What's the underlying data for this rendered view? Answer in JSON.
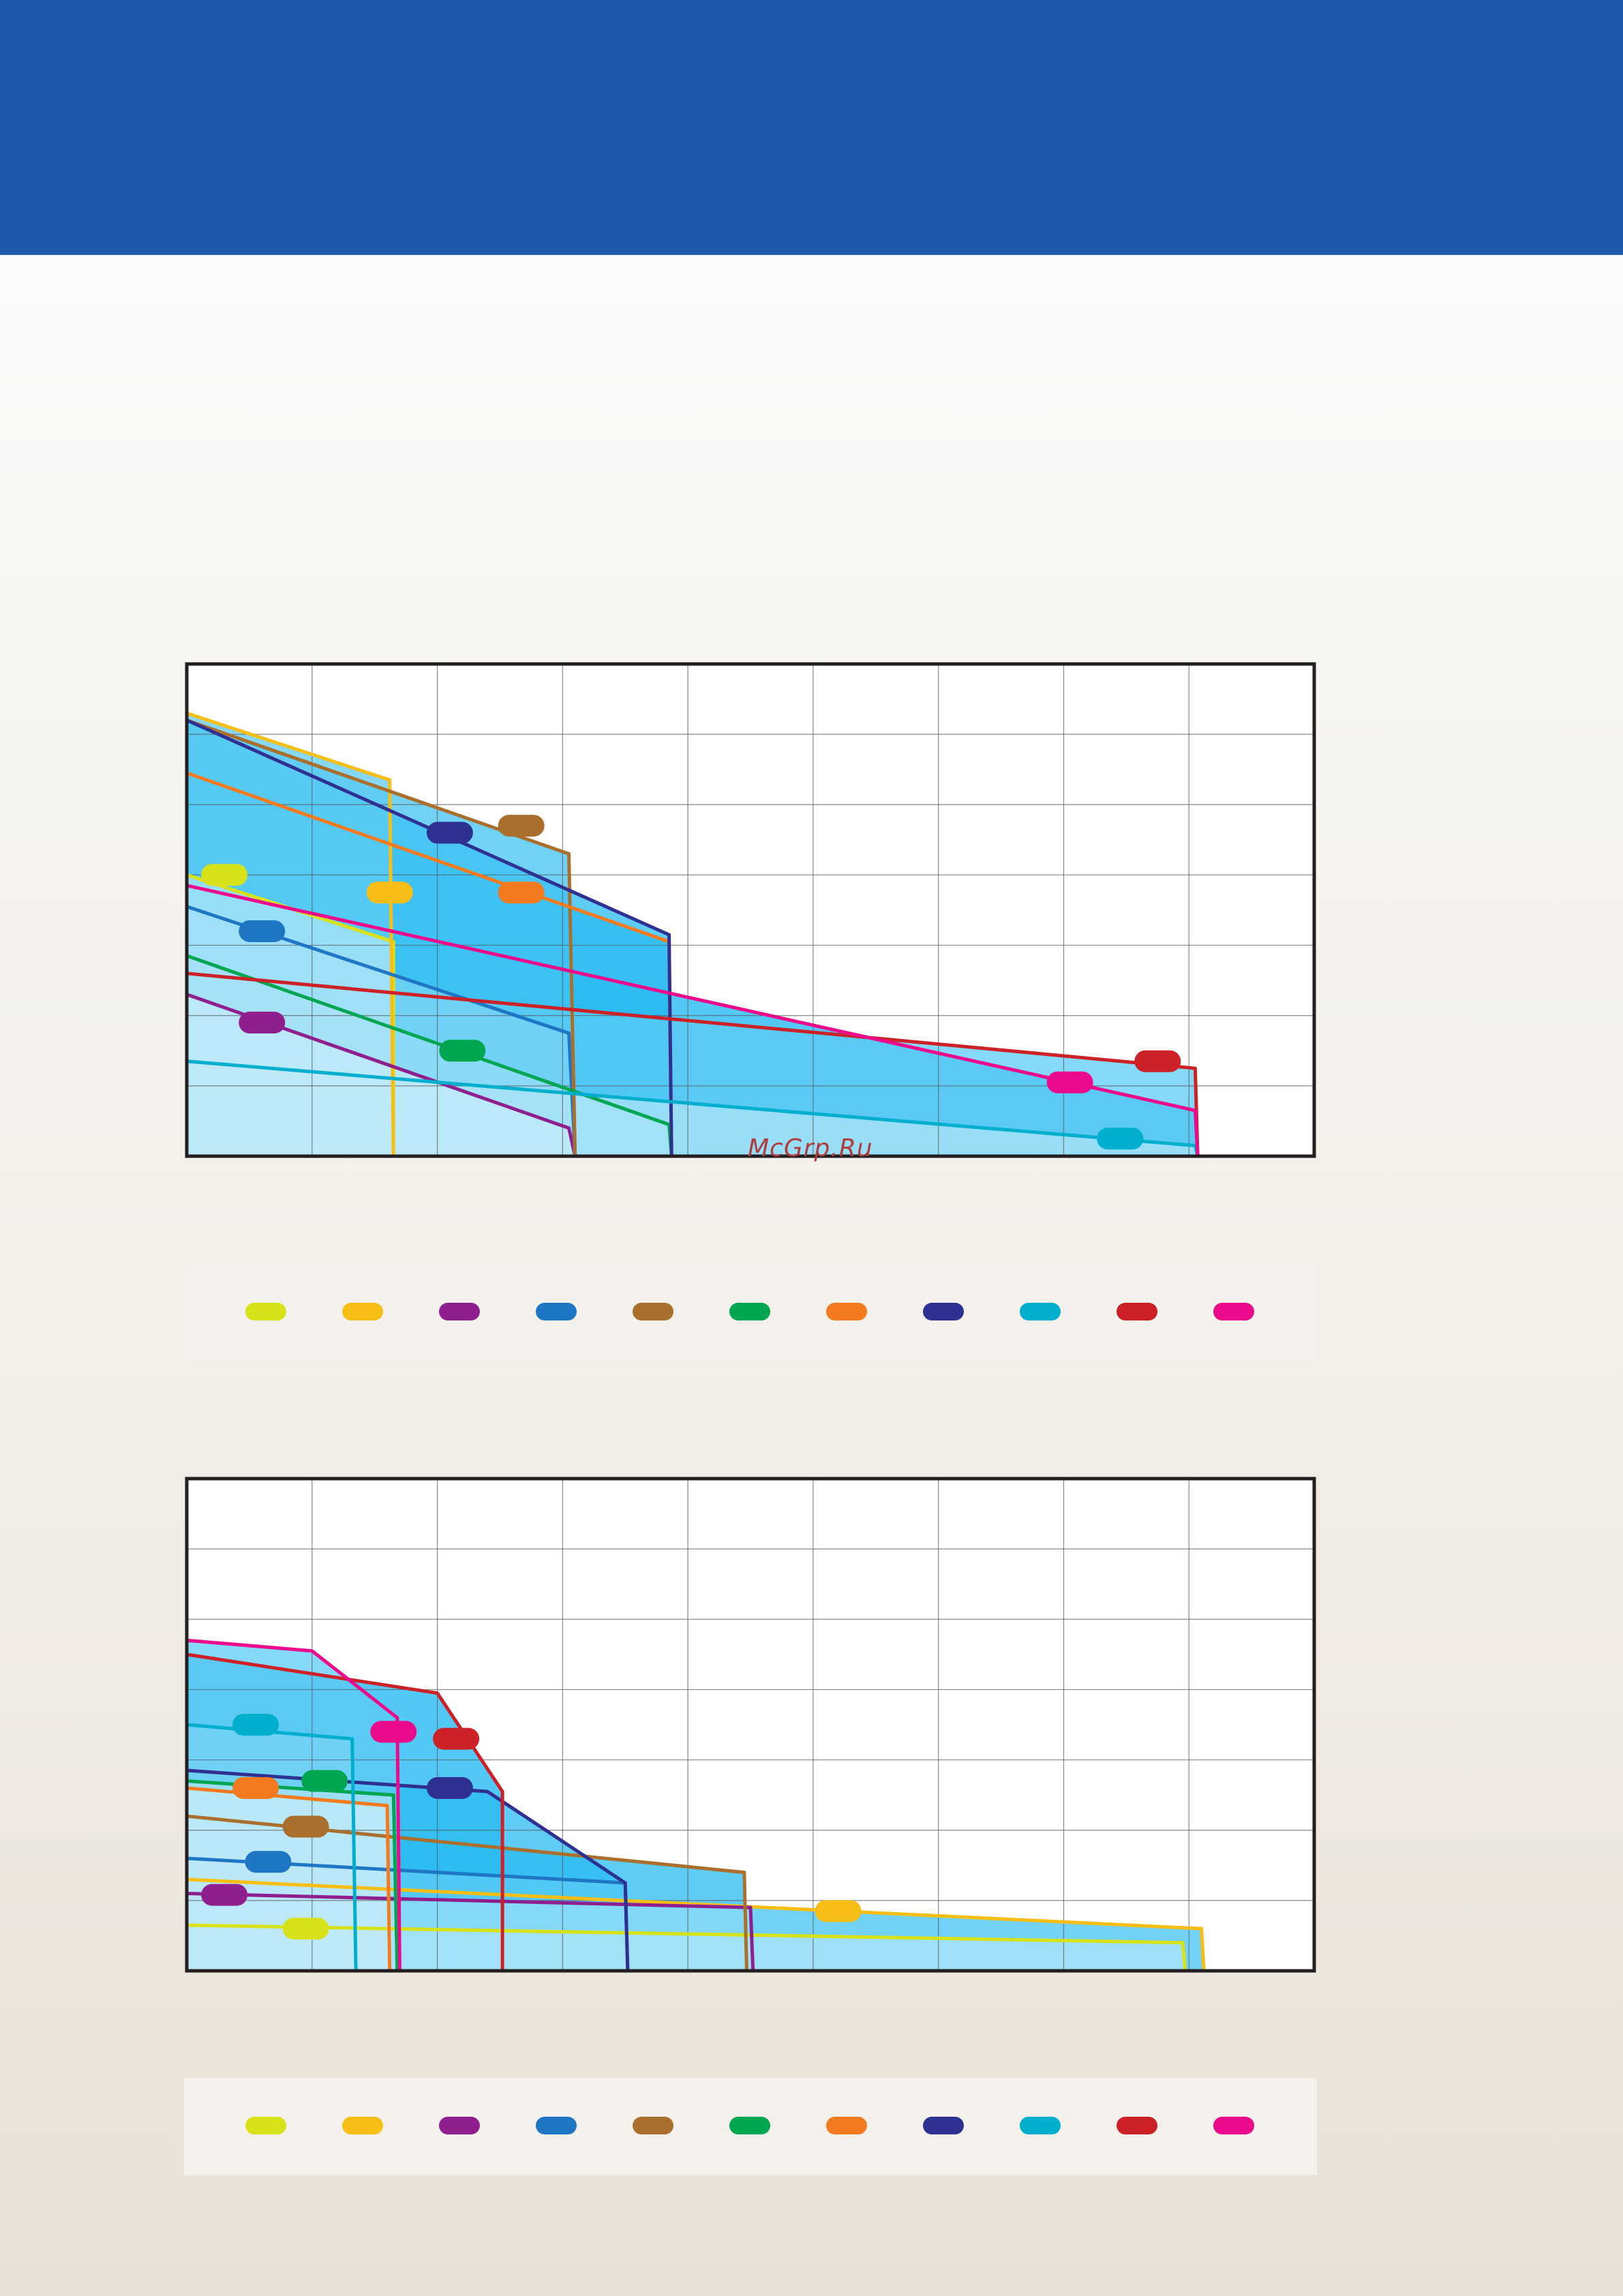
{
  "watermark": "McGrp.Ru",
  "colors": {
    "header": "#1f59ad",
    "fills": [
      "#1bb6f0",
      "#2abbf1",
      "#42c3f3",
      "#5ccbf4",
      "#77d3f5",
      "#95dcf7",
      "#aee4f8",
      "#c3ebfa"
    ],
    "series": {
      "yellow": "#d8e21a",
      "gold": "#f7be16",
      "purple": "#8f1f8f",
      "blue": "#1f76c4",
      "brown": "#aa6f2c",
      "green": "#00a650",
      "orange": "#f47a20",
      "navy": "#2e3192",
      "cyan": "#00aecd",
      "red": "#cc2127",
      "magenta": "#ec0a8c"
    }
  },
  "chart_data": [
    {
      "type": "line",
      "title": "",
      "xlabel": "",
      "ylabel": "",
      "xlim": [
        0,
        9
      ],
      "ylim": [
        0,
        7
      ],
      "grid": true,
      "series": [
        {
          "color": "yellow",
          "points": [
            [
              0,
              4.0
            ],
            [
              1.65,
              3.05
            ],
            [
              1.65,
              0
            ]
          ],
          "marker": [
            0.3,
            4.0
          ]
        },
        {
          "color": "gold",
          "points": [
            [
              0,
              6.3
            ],
            [
              1.62,
              5.35
            ],
            [
              1.65,
              0
            ]
          ],
          "marker": [
            1.62,
            3.75
          ]
        },
        {
          "color": "purple",
          "points": [
            [
              0,
              2.3
            ],
            [
              3.05,
              0.4
            ],
            [
              3.1,
              0
            ]
          ],
          "marker": [
            0.6,
            1.9
          ]
        },
        {
          "color": "blue",
          "points": [
            [
              0,
              3.55
            ],
            [
              3.05,
              1.75
            ],
            [
              3.1,
              0
            ]
          ],
          "marker": [
            0.6,
            3.2
          ]
        },
        {
          "color": "brown",
          "points": [
            [
              0,
              6.2
            ],
            [
              3.05,
              4.3
            ],
            [
              3.1,
              0
            ]
          ],
          "marker": [
            2.67,
            4.7
          ]
        },
        {
          "color": "green",
          "points": [
            [
              0,
              2.85
            ],
            [
              3.85,
              0.45
            ],
            [
              3.87,
              0
            ]
          ],
          "marker": [
            2.2,
            1.5
          ]
        },
        {
          "color": "orange",
          "points": [
            [
              0,
              5.45
            ],
            [
              3.85,
              3.05
            ],
            [
              3.87,
              0
            ]
          ],
          "marker": [
            2.67,
            3.75
          ]
        },
        {
          "color": "navy",
          "points": [
            [
              0,
              6.2
            ],
            [
              3.85,
              3.15
            ],
            [
              3.87,
              0
            ]
          ],
          "marker": [
            2.1,
            4.6
          ]
        },
        {
          "color": "cyan",
          "points": [
            [
              0,
              1.35
            ],
            [
              8.05,
              0.15
            ],
            [
              8.07,
              0
            ]
          ],
          "marker": [
            7.45,
            0.25
          ]
        },
        {
          "color": "red",
          "points": [
            [
              0,
              2.6
            ],
            [
              8.05,
              1.25
            ],
            [
              8.07,
              0
            ]
          ],
          "marker": [
            7.75,
            1.35
          ]
        },
        {
          "color": "magenta",
          "points": [
            [
              0,
              3.85
            ],
            [
              8.05,
              0.65
            ],
            [
              8.07,
              0
            ]
          ],
          "marker": [
            7.05,
            1.05
          ]
        }
      ]
    },
    {
      "type": "line",
      "title": "",
      "xlabel": "",
      "ylabel": "",
      "xlim": [
        0,
        9
      ],
      "ylim": [
        0,
        7
      ],
      "grid": true,
      "series": [
        {
          "color": "yellow",
          "points": [
            [
              0,
              0.65
            ],
            [
              7.95,
              0.4
            ],
            [
              7.97,
              0
            ]
          ],
          "marker": [
            0.95,
            0.6
          ]
        },
        {
          "color": "gold",
          "points": [
            [
              0,
              1.3
            ],
            [
              8.1,
              0.6
            ],
            [
              8.12,
              0
            ]
          ],
          "marker": [
            5.2,
            0.85
          ]
        },
        {
          "color": "purple",
          "points": [
            [
              0,
              1.1
            ],
            [
              4.5,
              0.9
            ],
            [
              4.52,
              0
            ]
          ],
          "marker": [
            0.3,
            1.08
          ]
        },
        {
          "color": "blue",
          "points": [
            [
              0,
              1.6
            ],
            [
              3.5,
              1.25
            ],
            [
              3.52,
              0
            ]
          ],
          "marker": [
            0.65,
            1.55
          ]
        },
        {
          "color": "brown",
          "points": [
            [
              0,
              2.2
            ],
            [
              4.45,
              1.4
            ],
            [
              4.47,
              0
            ]
          ],
          "marker": [
            0.95,
            2.05
          ]
        },
        {
          "color": "green",
          "points": [
            [
              0,
              2.7
            ],
            [
              1.65,
              2.5
            ],
            [
              1.68,
              0
            ]
          ],
          "marker": [
            1.1,
            2.7
          ]
        },
        {
          "color": "orange",
          "points": [
            [
              0,
              2.6
            ],
            [
              1.6,
              2.35
            ],
            [
              1.62,
              0
            ]
          ],
          "marker": [
            0.55,
            2.6
          ]
        },
        {
          "color": "navy",
          "points": [
            [
              0,
              2.85
            ],
            [
              2.4,
              2.55
            ],
            [
              3.5,
              1.25
            ],
            [
              3.52,
              0
            ]
          ],
          "marker": [
            2.1,
            2.6
          ]
        },
        {
          "color": "cyan",
          "points": [
            [
              0,
              3.5
            ],
            [
              1.32,
              3.3
            ],
            [
              1.35,
              0
            ]
          ],
          "marker": [
            0.55,
            3.5
          ]
        },
        {
          "color": "red",
          "points": [
            [
              0,
              4.5
            ],
            [
              2.0,
              3.95
            ],
            [
              2.52,
              2.55
            ],
            [
              2.52,
              0
            ]
          ],
          "marker": [
            2.15,
            3.3
          ]
        },
        {
          "color": "magenta",
          "points": [
            [
              0,
              4.7
            ],
            [
              1.0,
              4.55
            ],
            [
              1.68,
              3.6
            ],
            [
              1.7,
              0
            ]
          ],
          "marker": [
            1.65,
            3.4
          ]
        }
      ]
    }
  ],
  "legends": [
    {
      "items": [
        "yellow",
        "gold",
        "purple",
        "blue",
        "brown",
        "green",
        "orange",
        "navy",
        "cyan",
        "red",
        "magenta"
      ]
    },
    {
      "items": [
        "yellow",
        "gold",
        "purple",
        "blue",
        "brown",
        "green",
        "orange",
        "navy",
        "cyan",
        "red",
        "magenta"
      ]
    }
  ]
}
